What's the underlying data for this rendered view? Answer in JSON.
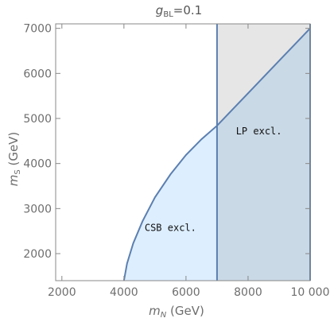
{
  "chart_data": {
    "type": "area",
    "title": {
      "base": "g",
      "sub": "BL",
      "suffix": "=0.1"
    },
    "xlabel": {
      "base": "m",
      "sub": "N",
      "suffix": " (GeV)"
    },
    "ylabel": {
      "base": "m",
      "sub": "S",
      "suffix": " (GeV)"
    },
    "xlim": [
      1800,
      10000
    ],
    "ylim": [
      1400,
      7100
    ],
    "x_ticks": [
      2000,
      4000,
      6000,
      8000,
      10000
    ],
    "x_tick_labels": [
      "2000",
      "4000",
      "6000",
      "8000",
      "10 000"
    ],
    "y_ticks": [
      2000,
      3000,
      4000,
      5000,
      6000,
      7000
    ],
    "y_tick_labels": [
      "2000",
      "3000",
      "4000",
      "5000",
      "6000",
      "7000"
    ],
    "grid": false,
    "boundary_curve": {
      "x": [
        4000,
        4100,
        4300,
        4600,
        5000,
        5500,
        6000,
        6500,
        7000,
        8000,
        9000,
        10000
      ],
      "y": [
        1400,
        1780,
        2230,
        2720,
        3250,
        3760,
        4190,
        4540,
        4840,
        5560,
        6280,
        7000
      ]
    },
    "lp_exclusion": {
      "x_min": 7000,
      "x_max": 10000
    },
    "regions": [
      {
        "label": "CSB excl.",
        "x": 5500,
        "y": 2500
      },
      {
        "label": "LP excl.",
        "x": 8350,
        "y": 4650
      }
    ],
    "colors": {
      "csb_fill": "#ddeeff",
      "lp_fill": "#c9d9e6",
      "upper_fill": "#e6e6e6",
      "line": "#5b7fb0",
      "frame": "#888888"
    }
  }
}
